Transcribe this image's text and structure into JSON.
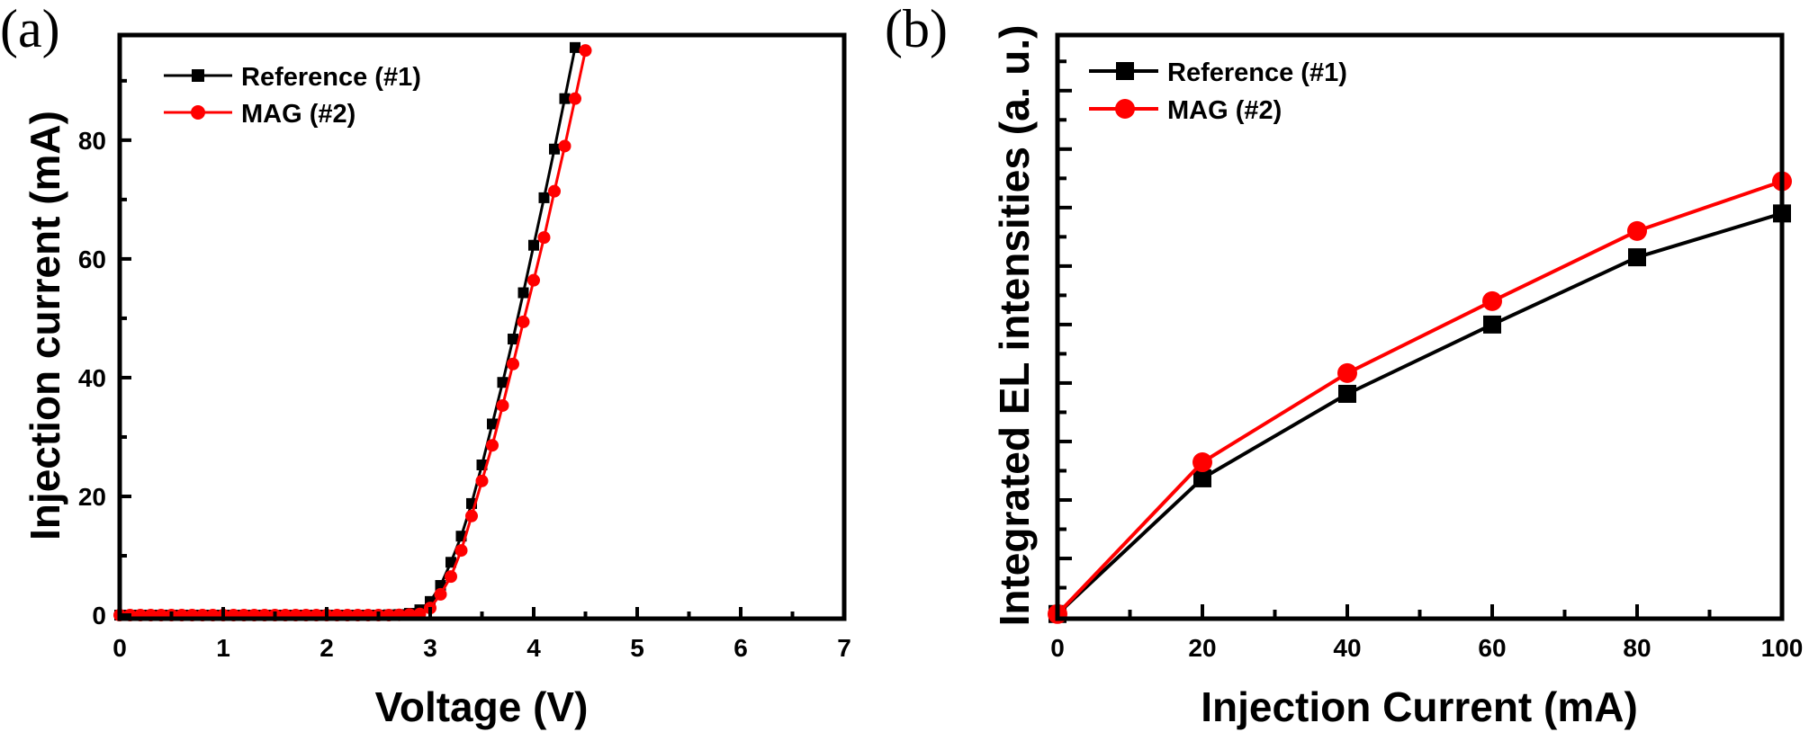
{
  "colors": {
    "reference": "#000000",
    "mag": "#ff0000",
    "axis": "#000000"
  },
  "chart_data": [
    {
      "panel_label": "(a)",
      "type": "line",
      "title": "",
      "xlabel": "Voltage (V)",
      "ylabel": "Injection current (mA)",
      "xlim": [
        0,
        7
      ],
      "ylim": [
        -0.6,
        97.7
      ],
      "xticks": [
        0,
        1,
        2,
        3,
        4,
        5,
        6,
        7
      ],
      "xtick_labels": [
        "0",
        "1",
        "2",
        "3",
        "4",
        "5",
        "6",
        "7"
      ],
      "xminor": [
        0.5,
        1.5,
        2.5,
        3.5,
        4.5,
        5.5,
        6.5
      ],
      "yticks": [
        0,
        20,
        40,
        60,
        80
      ],
      "ytick_labels": [
        "0",
        "20",
        "40",
        "60",
        "80"
      ],
      "yminor": [
        10,
        30,
        50,
        70,
        90
      ],
      "grid": false,
      "legend_position": "top-left",
      "series": [
        {
          "name": "Reference (#1)",
          "marker": "square",
          "color_key": "reference",
          "x": [
            0.0,
            0.1,
            0.2,
            0.3,
            0.4,
            0.5,
            0.6,
            0.7,
            0.8,
            0.9,
            1.0,
            1.1,
            1.2,
            1.3,
            1.4,
            1.5,
            1.6,
            1.7,
            1.8,
            1.9,
            2.0,
            2.1,
            2.2,
            2.3,
            2.4,
            2.5,
            2.6,
            2.7,
            2.8,
            2.9,
            3.0,
            3.1,
            3.2,
            3.3,
            3.4,
            3.5,
            3.6,
            3.7,
            3.8,
            3.9,
            4.0,
            4.1,
            4.2,
            4.3,
            4.4
          ],
          "y": [
            0,
            0,
            0,
            0,
            0,
            0,
            0,
            0,
            0,
            0,
            0,
            0,
            0,
            0,
            0,
            0,
            0,
            0,
            0,
            0,
            0,
            0,
            0,
            0,
            0,
            0,
            0.05,
            0.1,
            0.3,
            0.9,
            2.3,
            5.0,
            8.9,
            13.3,
            18.8,
            25.3,
            32.2,
            39.2,
            46.5,
            54.3,
            62.3,
            70.3,
            78.5,
            87.0,
            95.6
          ]
        },
        {
          "name": "MAG (#2)",
          "marker": "circle",
          "color_key": "mag",
          "x": [
            0.0,
            0.1,
            0.2,
            0.3,
            0.4,
            0.5,
            0.6,
            0.7,
            0.8,
            0.9,
            1.0,
            1.1,
            1.2,
            1.3,
            1.4,
            1.5,
            1.6,
            1.7,
            1.8,
            1.9,
            2.0,
            2.1,
            2.2,
            2.3,
            2.4,
            2.5,
            2.6,
            2.7,
            2.8,
            2.9,
            3.0,
            3.1,
            3.2,
            3.3,
            3.4,
            3.5,
            3.6,
            3.7,
            3.8,
            3.9,
            4.0,
            4.1,
            4.2,
            4.3,
            4.4,
            4.5
          ],
          "y": [
            0,
            0,
            0,
            0,
            0,
            0,
            0,
            0,
            0,
            0,
            0,
            0,
            0,
            0,
            0,
            0,
            0,
            0,
            0,
            0,
            0,
            0,
            0,
            0,
            0,
            0,
            0,
            0.05,
            0.1,
            0.2,
            1.2,
            3.5,
            6.5,
            10.9,
            16.7,
            22.6,
            28.6,
            35.3,
            42.3,
            49.4,
            56.4,
            63.6,
            71.4,
            79.0,
            87.0,
            95.1
          ]
        }
      ]
    },
    {
      "panel_label": "(b)",
      "type": "line",
      "title": "",
      "xlabel": "Injection Current (mA)",
      "ylabel": "Integrated EL intensities (a. u.)",
      "xlim": [
        0,
        100
      ],
      "ylim": [
        -0.06,
        19.9
      ],
      "xticks": [
        0,
        20,
        40,
        60,
        80,
        100
      ],
      "xtick_labels": [
        "0",
        "20",
        "40",
        "60",
        "80",
        "100"
      ],
      "xminor": [
        10,
        30,
        50,
        70,
        90
      ],
      "yticks": [
        2,
        4,
        6,
        8,
        10,
        12,
        14,
        16,
        18
      ],
      "ytick_labels": [],
      "yminor": [
        1,
        3,
        5,
        7,
        9,
        11,
        13,
        15,
        17,
        19
      ],
      "grid": false,
      "legend_position": "top-left",
      "series": [
        {
          "name": "Reference (#1)",
          "marker": "square",
          "color_key": "reference",
          "x": [
            0,
            20,
            40,
            60,
            80,
            100
          ],
          "y": [
            0.1,
            4.74,
            7.63,
            10.0,
            12.3,
            13.8
          ]
        },
        {
          "name": "MAG (#2)",
          "marker": "circle",
          "color_key": "mag",
          "x": [
            0,
            20,
            40,
            60,
            80,
            100
          ],
          "y": [
            0.1,
            5.29,
            8.34,
            10.8,
            13.2,
            14.9
          ]
        }
      ]
    }
  ]
}
